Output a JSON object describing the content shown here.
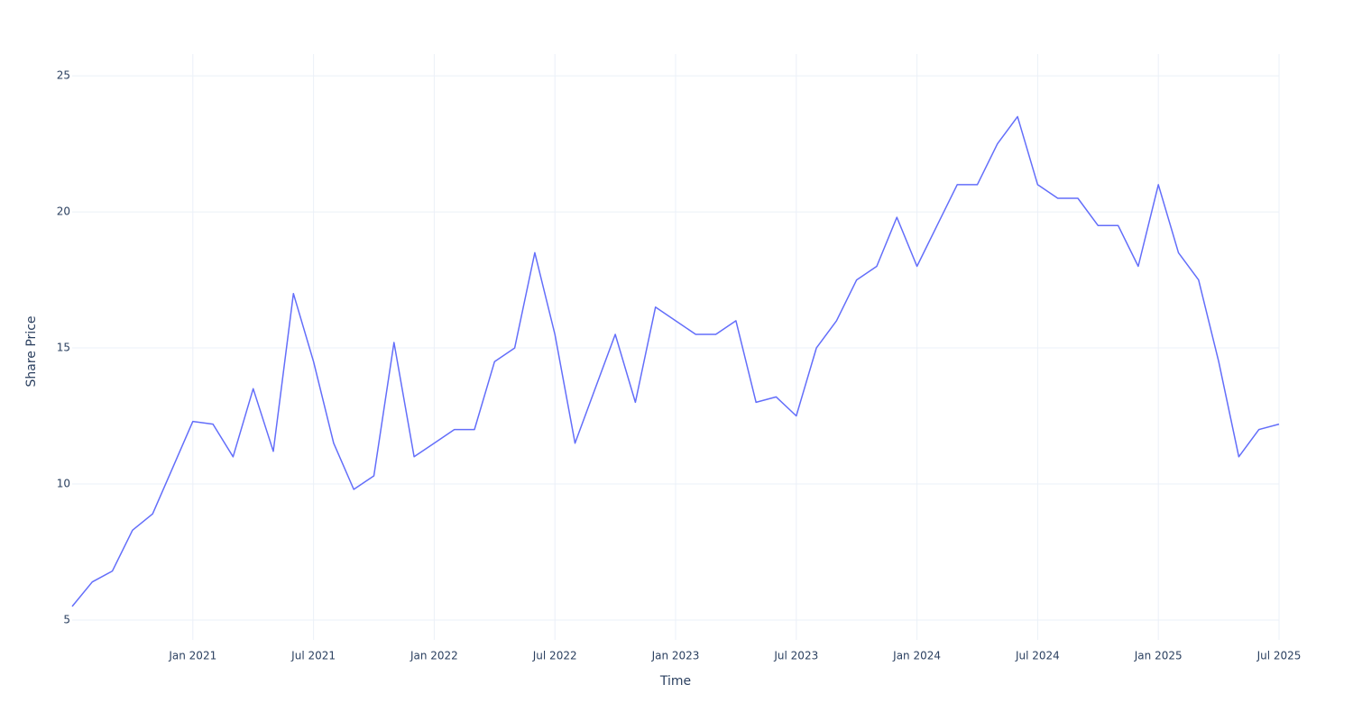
{
  "chart_data": {
    "type": "line",
    "x_label": "Time",
    "y_label": "Share Price",
    "x": [
      "2020-07",
      "2020-08",
      "2020-09",
      "2020-10",
      "2020-11",
      "2020-12",
      "2021-01",
      "2021-02",
      "2021-03",
      "2021-04",
      "2021-05",
      "2021-06",
      "2021-07",
      "2021-08",
      "2021-09",
      "2021-10",
      "2021-11",
      "2021-12",
      "2022-01",
      "2022-02",
      "2022-03",
      "2022-04",
      "2022-05",
      "2022-06",
      "2022-07",
      "2022-08",
      "2022-09",
      "2022-10",
      "2022-11",
      "2022-12",
      "2023-01",
      "2023-02",
      "2023-03",
      "2023-04",
      "2023-05",
      "2023-06",
      "2023-07",
      "2023-08",
      "2023-09",
      "2023-10",
      "2023-11",
      "2023-12",
      "2024-01",
      "2024-02",
      "2024-03",
      "2024-04",
      "2024-05",
      "2024-06",
      "2024-07",
      "2024-08",
      "2024-09",
      "2024-10",
      "2024-11",
      "2024-12",
      "2025-01",
      "2025-02",
      "2025-03",
      "2025-04",
      "2025-05",
      "2025-06",
      "2025-07"
    ],
    "series": [
      {
        "name": "Share Price",
        "color": "#636efa",
        "values": [
          5.5,
          6.4,
          6.8,
          8.3,
          8.9,
          10.6,
          12.3,
          12.2,
          11.0,
          13.5,
          11.2,
          17.0,
          14.5,
          11.5,
          9.8,
          10.3,
          15.2,
          11.0,
          11.5,
          12.0,
          12.0,
          14.5,
          15.0,
          18.5,
          15.5,
          11.5,
          13.5,
          15.5,
          13.0,
          16.5,
          16.0,
          15.5,
          15.5,
          16.0,
          13.0,
          13.2,
          12.5,
          15.0,
          16.0,
          17.5,
          18.0,
          19.8,
          18.0,
          19.5,
          21.0,
          21.0,
          22.5,
          23.5,
          21.0,
          20.5,
          20.5,
          19.5,
          19.5,
          18.0,
          21.0,
          18.5,
          17.5,
          14.5,
          11.0,
          12.0,
          12.2
        ]
      }
    ],
    "xlim": [
      "2020-07",
      "2025-07"
    ],
    "xticks": [
      {
        "value": "2021-01",
        "label": "Jan 2021"
      },
      {
        "value": "2021-07",
        "label": "Jul 2021"
      },
      {
        "value": "2022-01",
        "label": "Jan 2022"
      },
      {
        "value": "2022-07",
        "label": "Jul 2022"
      },
      {
        "value": "2023-01",
        "label": "Jan 2023"
      },
      {
        "value": "2023-07",
        "label": "Jul 2023"
      },
      {
        "value": "2024-01",
        "label": "Jan 2024"
      },
      {
        "value": "2024-07",
        "label": "Jul 2024"
      },
      {
        "value": "2025-01",
        "label": "Jan 2025"
      },
      {
        "value": "2025-07",
        "label": "Jul 2025"
      }
    ],
    "ylim": [
      4.27,
      25.8
    ],
    "yticks": [
      5,
      10,
      15,
      20,
      25
    ],
    "grid": true
  }
}
